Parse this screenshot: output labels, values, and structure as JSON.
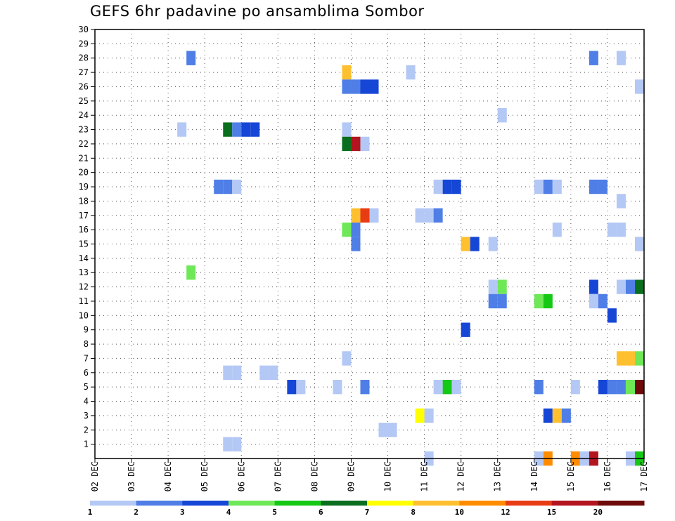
{
  "chart_data": {
    "type": "heatmap",
    "title": "GEFS 6hr padavine po ansamblima Sombor",
    "xlabel": "",
    "ylabel": "",
    "x_tick_labels": [
      "02 DEC",
      "03 DEC",
      "04 DEC",
      "05 DEC",
      "06 DEC",
      "07 DEC",
      "08 DEC",
      "09 DEC",
      "10 DEC",
      "11 DEC",
      "12 DEC",
      "13 DEC",
      "14 DEC",
      "15 DEC",
      "16 DEC",
      "17 DEC"
    ],
    "y_tick_labels": [
      "1",
      "2",
      "3",
      "4",
      "5",
      "6",
      "7",
      "8",
      "9",
      "10",
      "11",
      "12",
      "13",
      "14",
      "15",
      "16",
      "17",
      "18",
      "19",
      "20",
      "21",
      "22",
      "23",
      "24",
      "25",
      "26",
      "27",
      "28",
      "29",
      "30"
    ],
    "x_range_days": [
      0,
      15
    ],
    "y_range": [
      0,
      30
    ],
    "step_hours": 6,
    "grid": true,
    "colorbar": {
      "labels": [
        "1",
        "2",
        "3",
        "4",
        "5",
        "6",
        "7",
        "8",
        "10",
        "12",
        "15",
        "20"
      ],
      "colors": [
        "#b4c8f5",
        "#4f7ee6",
        "#1546d6",
        "#6fe858",
        "#14c814",
        "#0a6e1e",
        "#ffff00",
        "#ffc030",
        "#ff8c00",
        "#e83c14",
        "#b4141e",
        "#6e0a0a"
      ]
    },
    "points": [
      {
        "member": 28,
        "day": 2.5,
        "bin": 1
      },
      {
        "member": 28,
        "day": 13.5,
        "bin": 1
      },
      {
        "member": 28,
        "day": 14.25,
        "bin": 0
      },
      {
        "member": 27,
        "day": 6.75,
        "bin": 7
      },
      {
        "member": 27,
        "day": 8.5,
        "bin": 0
      },
      {
        "member": 26,
        "day": 6.75,
        "bin": 1
      },
      {
        "member": 26,
        "day": 7.0,
        "bin": 1
      },
      {
        "member": 26,
        "day": 7.25,
        "bin": 2
      },
      {
        "member": 26,
        "day": 7.5,
        "bin": 2
      },
      {
        "member": 26,
        "day": 14.75,
        "bin": 0
      },
      {
        "member": 24,
        "day": 11.0,
        "bin": 0
      },
      {
        "member": 23,
        "day": 2.25,
        "bin": 0
      },
      {
        "member": 23,
        "day": 3.5,
        "bin": 5
      },
      {
        "member": 23,
        "day": 3.75,
        "bin": 1
      },
      {
        "member": 23,
        "day": 4.0,
        "bin": 2
      },
      {
        "member": 23,
        "day": 4.25,
        "bin": 2
      },
      {
        "member": 23,
        "day": 6.75,
        "bin": 0
      },
      {
        "member": 22,
        "day": 6.75,
        "bin": 5
      },
      {
        "member": 22,
        "day": 7.0,
        "bin": 10
      },
      {
        "member": 22,
        "day": 7.25,
        "bin": 0
      },
      {
        "member": 19,
        "day": 3.25,
        "bin": 1
      },
      {
        "member": 19,
        "day": 3.5,
        "bin": 1
      },
      {
        "member": 19,
        "day": 3.75,
        "bin": 0
      },
      {
        "member": 19,
        "day": 9.25,
        "bin": 0
      },
      {
        "member": 19,
        "day": 9.5,
        "bin": 2
      },
      {
        "member": 19,
        "day": 9.75,
        "bin": 2
      },
      {
        "member": 19,
        "day": 12.0,
        "bin": 0
      },
      {
        "member": 19,
        "day": 12.25,
        "bin": 1
      },
      {
        "member": 19,
        "day": 12.5,
        "bin": 0
      },
      {
        "member": 19,
        "day": 13.5,
        "bin": 1
      },
      {
        "member": 19,
        "day": 13.75,
        "bin": 1
      },
      {
        "member": 18,
        "day": 14.25,
        "bin": 0
      },
      {
        "member": 17,
        "day": 7.0,
        "bin": 7
      },
      {
        "member": 17,
        "day": 7.25,
        "bin": 9
      },
      {
        "member": 17,
        "day": 7.5,
        "bin": 0
      },
      {
        "member": 17,
        "day": 8.75,
        "bin": 0
      },
      {
        "member": 17,
        "day": 9.0,
        "bin": 0
      },
      {
        "member": 17,
        "day": 9.25,
        "bin": 1
      },
      {
        "member": 16,
        "day": 6.75,
        "bin": 3
      },
      {
        "member": 16,
        "day": 7.0,
        "bin": 1
      },
      {
        "member": 16,
        "day": 12.5,
        "bin": 0
      },
      {
        "member": 16,
        "day": 14.0,
        "bin": 0
      },
      {
        "member": 16,
        "day": 14.25,
        "bin": 0
      },
      {
        "member": 15,
        "day": 7.0,
        "bin": 1
      },
      {
        "member": 15,
        "day": 10.0,
        "bin": 7
      },
      {
        "member": 15,
        "day": 10.25,
        "bin": 2
      },
      {
        "member": 15,
        "day": 10.75,
        "bin": 0
      },
      {
        "member": 15,
        "day": 14.75,
        "bin": 0
      },
      {
        "member": 13,
        "day": 2.5,
        "bin": 3
      },
      {
        "member": 12,
        "day": 10.75,
        "bin": 0
      },
      {
        "member": 12,
        "day": 11.0,
        "bin": 3
      },
      {
        "member": 12,
        "day": 13.5,
        "bin": 2
      },
      {
        "member": 12,
        "day": 14.25,
        "bin": 0
      },
      {
        "member": 12,
        "day": 14.5,
        "bin": 1
      },
      {
        "member": 12,
        "day": 14.75,
        "bin": 5
      },
      {
        "member": 11,
        "day": 10.75,
        "bin": 1
      },
      {
        "member": 11,
        "day": 11.0,
        "bin": 1
      },
      {
        "member": 11,
        "day": 12.0,
        "bin": 3
      },
      {
        "member": 11,
        "day": 12.25,
        "bin": 4
      },
      {
        "member": 11,
        "day": 13.5,
        "bin": 0
      },
      {
        "member": 11,
        "day": 13.75,
        "bin": 1
      },
      {
        "member": 10,
        "day": 14.0,
        "bin": 2
      },
      {
        "member": 9,
        "day": 10.0,
        "bin": 2
      },
      {
        "member": 7,
        "day": 6.75,
        "bin": 0
      },
      {
        "member": 7,
        "day": 14.25,
        "bin": 7
      },
      {
        "member": 7,
        "day": 14.5,
        "bin": 7
      },
      {
        "member": 7,
        "day": 14.75,
        "bin": 3
      },
      {
        "member": 6,
        "day": 3.5,
        "bin": 0
      },
      {
        "member": 6,
        "day": 3.75,
        "bin": 0
      },
      {
        "member": 6,
        "day": 4.5,
        "bin": 0
      },
      {
        "member": 6,
        "day": 4.75,
        "bin": 0
      },
      {
        "member": 5,
        "day": 5.25,
        "bin": 2
      },
      {
        "member": 5,
        "day": 5.5,
        "bin": 0
      },
      {
        "member": 5,
        "day": 6.5,
        "bin": 0
      },
      {
        "member": 5,
        "day": 7.25,
        "bin": 1
      },
      {
        "member": 5,
        "day": 9.25,
        "bin": 0
      },
      {
        "member": 5,
        "day": 9.5,
        "bin": 4
      },
      {
        "member": 5,
        "day": 9.75,
        "bin": 0
      },
      {
        "member": 5,
        "day": 12.0,
        "bin": 1
      },
      {
        "member": 5,
        "day": 13.0,
        "bin": 0
      },
      {
        "member": 5,
        "day": 13.75,
        "bin": 2
      },
      {
        "member": 5,
        "day": 14.0,
        "bin": 1
      },
      {
        "member": 5,
        "day": 14.25,
        "bin": 1
      },
      {
        "member": 5,
        "day": 14.5,
        "bin": 3
      },
      {
        "member": 5,
        "day": 14.75,
        "bin": 11
      },
      {
        "member": 3,
        "day": 8.75,
        "bin": 6
      },
      {
        "member": 3,
        "day": 9.0,
        "bin": 0
      },
      {
        "member": 3,
        "day": 12.25,
        "bin": 2
      },
      {
        "member": 3,
        "day": 12.5,
        "bin": 7
      },
      {
        "member": 3,
        "day": 12.75,
        "bin": 1
      },
      {
        "member": 2,
        "day": 7.75,
        "bin": 0
      },
      {
        "member": 2,
        "day": 8.0,
        "bin": 0
      },
      {
        "member": 1,
        "day": 3.5,
        "bin": 0
      },
      {
        "member": 1,
        "day": 3.75,
        "bin": 0
      },
      {
        "member": 0,
        "day": 9.0,
        "bin": 0
      },
      {
        "member": 0,
        "day": 12.0,
        "bin": 0
      },
      {
        "member": 0,
        "day": 12.25,
        "bin": 8
      },
      {
        "member": 0,
        "day": 13.0,
        "bin": 8
      },
      {
        "member": 0,
        "day": 13.25,
        "bin": 0
      },
      {
        "member": 0,
        "day": 13.5,
        "bin": 10
      },
      {
        "member": 0,
        "day": 14.5,
        "bin": 0
      },
      {
        "member": 0,
        "day": 14.75,
        "bin": 4
      }
    ]
  }
}
